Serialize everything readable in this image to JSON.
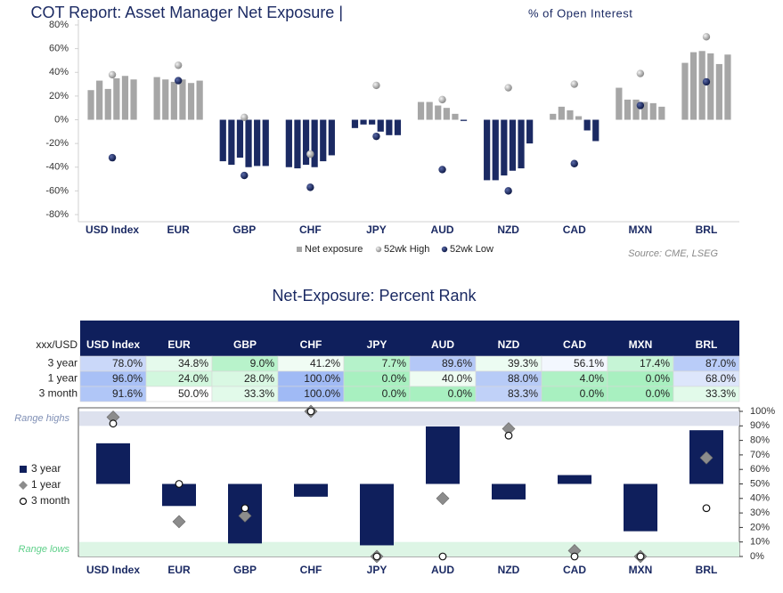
{
  "chart_data": [
    {
      "type": "grouped-bar-range",
      "title": "COT Report: Asset Manager Net Exposure |",
      "subtitle": "% of Open Interest",
      "categories": [
        "USD Index",
        "EUR",
        "GBP",
        "CHF",
        "JPY",
        "AUD",
        "NZD",
        "CAD",
        "MXN",
        "BRL"
      ],
      "series": [
        {
          "name": "Net exposure",
          "color": "#a6a6a6",
          "negative_color": "#1b2a63",
          "values": [
            [
              25,
              33,
              26,
              35,
              37,
              34
            ],
            [
              36,
              34,
              32,
              34,
              31,
              33
            ],
            [
              -35,
              -38,
              -32,
              -40,
              -39,
              -39
            ],
            [
              -40,
              -41,
              -38,
              -40,
              -35,
              -30
            ],
            [
              -7,
              -4,
              -4,
              -10,
              -13,
              -13
            ],
            [
              15,
              15,
              12,
              10,
              5,
              -1
            ],
            [
              -51,
              -51,
              -47,
              -43,
              -41,
              -20
            ],
            [
              5,
              11,
              8,
              3,
              -9,
              -18
            ],
            [
              27,
              17,
              17,
              15,
              14,
              11
            ],
            [
              48,
              57,
              58,
              56,
              47,
              55
            ]
          ]
        },
        {
          "name": "52wk High",
          "color": "#a8a8a8",
          "values": [
            38,
            46,
            2,
            -29,
            29,
            17,
            27,
            30,
            39,
            70
          ]
        },
        {
          "name": "52wk Low",
          "color": "#1b2a63",
          "values": [
            -32,
            33,
            -47,
            -57,
            -14,
            -42,
            -60,
            -37,
            12,
            32
          ]
        }
      ],
      "ylim": [
        -80,
        80
      ],
      "yticks": [
        {
          "value": -80,
          "label": "-80%"
        },
        {
          "value": -60,
          "label": "-60%"
        },
        {
          "value": -40,
          "label": "-40%"
        },
        {
          "value": -20,
          "label": "-20%"
        },
        {
          "value": 0,
          "label": "0%"
        },
        {
          "value": 20,
          "label": "20%"
        },
        {
          "value": 40,
          "label": "40%"
        },
        {
          "value": 60,
          "label": "60%"
        },
        {
          "value": 80,
          "label": "80%"
        }
      ],
      "grid": false,
      "note": "Source: CME, LSEG"
    },
    {
      "type": "table",
      "title": "Net-Exposure: Percent Rank",
      "corner": "xxx/USD",
      "columns": [
        "USD Index",
        "EUR",
        "GBP",
        "CHF",
        "JPY",
        "AUD",
        "NZD",
        "CAD",
        "MXN",
        "BRL"
      ],
      "rows": [
        {
          "name": "3 year",
          "values": [
            78.0,
            34.8,
            9.0,
            41.2,
            7.7,
            89.6,
            39.3,
            56.1,
            17.4,
            87.0
          ],
          "value_labels": [
            "78.0%",
            "34.8%",
            "9.0%",
            "41.2%",
            "7.7%",
            "89.6%",
            "39.3%",
            "56.1%",
            "17.4%",
            "87.0%"
          ]
        },
        {
          "name": "1 year",
          "values": [
            96.0,
            24.0,
            28.0,
            100.0,
            0.0,
            40.0,
            88.0,
            4.0,
            0.0,
            68.0
          ],
          "value_labels": [
            "96.0%",
            "24.0%",
            "28.0%",
            "100.0%",
            "0.0%",
            "40.0%",
            "88.0%",
            "4.0%",
            "0.0%",
            "68.0%"
          ]
        },
        {
          "name": "3 month",
          "values": [
            91.6,
            50.0,
            33.3,
            100.0,
            0.0,
            0.0,
            83.3,
            0.0,
            0.0,
            33.3
          ],
          "value_labels": [
            "91.6%",
            "50.0%",
            "33.3%",
            "100.0%",
            "0.0%",
            "0.0%",
            "83.3%",
            "0.0%",
            "0.0%",
            "33.3%"
          ]
        }
      ]
    },
    {
      "type": "rank",
      "categories": [
        "USD Index",
        "EUR",
        "GBP",
        "CHF",
        "JPY",
        "AUD",
        "NZD",
        "CAD",
        "MXN",
        "BRL"
      ],
      "series": [
        {
          "name": "3 year",
          "color": "#0f1f5c",
          "values": [
            78.0,
            34.8,
            9.0,
            41.2,
            7.7,
            89.6,
            39.3,
            56.1,
            17.4,
            87.0
          ]
        },
        {
          "name": "1 year",
          "color": "#8c8c8c",
          "values": [
            96.0,
            24.0,
            28.0,
            100.0,
            0.0,
            40.0,
            88.0,
            4.0,
            0.0,
            68.0
          ]
        },
        {
          "name": "3 month",
          "color": "#ffffff",
          "values": [
            91.6,
            50.0,
            33.3,
            100.0,
            0.0,
            0.0,
            83.3,
            0.0,
            0.0,
            33.3
          ]
        }
      ],
      "bands": [
        {
          "label": "Range highs",
          "range": [
            90,
            100
          ],
          "color": "#dde1ee",
          "text_color": "#7f8fb5"
        },
        {
          "label": "Range lows",
          "range": [
            0,
            10
          ],
          "color": "#ddf5e5",
          "text_color": "#5fd08a"
        }
      ],
      "y2lim": [
        0,
        100
      ],
      "y2ticks": [
        {
          "value": 0,
          "label": "0%"
        },
        {
          "value": 10,
          "label": "10%"
        },
        {
          "value": 20,
          "label": "20%"
        },
        {
          "value": 30,
          "label": "30%"
        },
        {
          "value": 40,
          "label": "40%"
        },
        {
          "value": 50,
          "label": "50%"
        },
        {
          "value": 60,
          "label": "60%"
        },
        {
          "value": 70,
          "label": "70%"
        },
        {
          "value": 80,
          "label": "80%"
        },
        {
          "value": 90,
          "label": "90%"
        },
        {
          "value": 100,
          "label": "100%"
        }
      ]
    }
  ]
}
